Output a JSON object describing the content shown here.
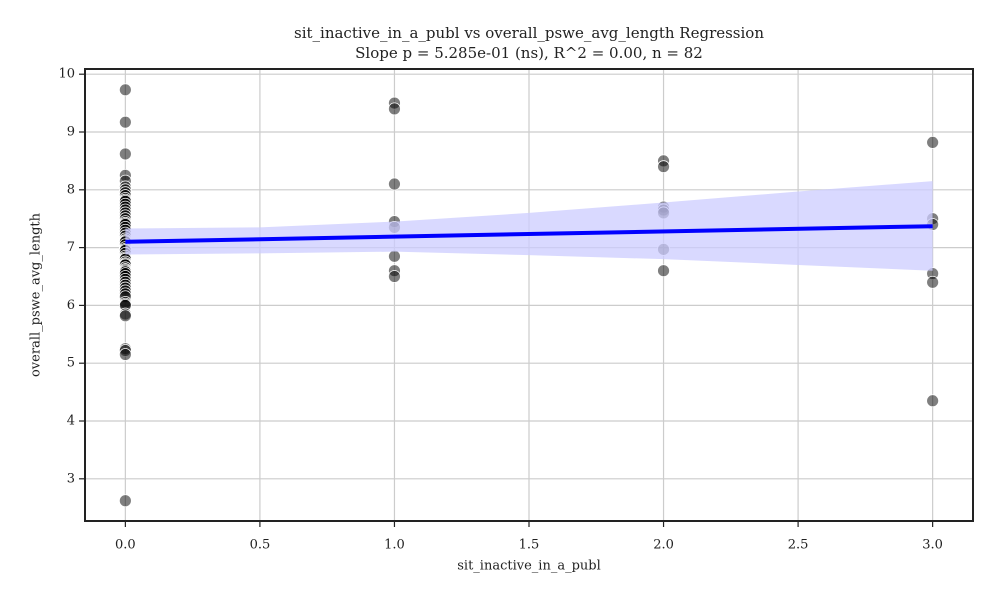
{
  "chart_data": {
    "type": "scatter",
    "title": "sit_inactive_in_a_publ vs overall_pswe_avg_length Regression",
    "subtitle": "Slope p = 5.285e-01 (ns), R^2 = 0.00, n = 82",
    "xlabel": "sit_inactive_in_a_publ",
    "ylabel": "overall_pswe_avg_length",
    "xlim": [
      -0.15,
      3.15
    ],
    "ylim": [
      2.27,
      10.09
    ],
    "xticks": [
      {
        "value": 0,
        "label": "0.0"
      },
      0.5,
      {
        "value": 1,
        "label": "1.0"
      },
      1.5,
      {
        "value": 2,
        "label": "2.0"
      },
      2.5,
      {
        "value": 3,
        "label": "3.0"
      }
    ],
    "yticks": [
      3,
      4,
      5,
      6,
      7,
      8,
      9,
      10
    ],
    "grid": true,
    "points": {
      "color": "#000000",
      "x": [
        0,
        0,
        0,
        0,
        0,
        0,
        0,
        0,
        0,
        0,
        0,
        0,
        0,
        0,
        0,
        0,
        0,
        0,
        0,
        0,
        0,
        0,
        0,
        0,
        0,
        0,
        0,
        0,
        0,
        0,
        0,
        0,
        0,
        0,
        0,
        0,
        0,
        0,
        0,
        0,
        0,
        0,
        0,
        0,
        0,
        0,
        0,
        0,
        0,
        0,
        0,
        0,
        0,
        0,
        0,
        0,
        0,
        0,
        0,
        0,
        0,
        1,
        1,
        1,
        1,
        1,
        1,
        1,
        1,
        2,
        2,
        2,
        2,
        2,
        2,
        2,
        3,
        3,
        3,
        3,
        3,
        3
      ],
      "y": [
        9.73,
        9.17,
        8.62,
        8.25,
        8.15,
        8.05,
        8.0,
        7.95,
        7.9,
        7.85,
        7.82,
        7.8,
        7.75,
        7.7,
        7.65,
        7.6,
        7.55,
        7.5,
        7.45,
        7.42,
        7.4,
        7.35,
        7.3,
        7.25,
        7.2,
        7.15,
        7.12,
        7.1,
        7.05,
        7.0,
        6.97,
        6.95,
        6.9,
        6.85,
        6.82,
        6.8,
        6.75,
        6.72,
        6.7,
        6.65,
        6.62,
        6.6,
        6.58,
        6.55,
        6.5,
        6.45,
        6.4,
        6.35,
        6.3,
        6.25,
        6.2,
        6.15,
        6.05,
        6.02,
        6.0,
        5.85,
        5.82,
        5.25,
        5.22,
        5.15,
        2.62,
        9.5,
        9.4,
        8.1,
        7.45,
        7.35,
        6.85,
        6.6,
        6.5,
        8.5,
        8.4,
        7.7,
        7.65,
        7.6,
        6.97,
        6.6,
        8.82,
        7.5,
        7.4,
        6.55,
        6.4,
        4.35
      ]
    },
    "regression": {
      "color": "#0000ff",
      "x": [
        0,
        3
      ],
      "y": [
        7.1,
        7.37
      ]
    },
    "band": {
      "color": "#ccccff",
      "x": [
        0,
        0.5,
        1,
        1.5,
        2,
        2.5,
        3
      ],
      "lower": [
        6.88,
        6.9,
        6.93,
        6.87,
        6.8,
        6.7,
        6.6
      ],
      "upper": [
        7.33,
        7.35,
        7.45,
        7.6,
        7.78,
        7.97,
        8.15
      ]
    }
  }
}
